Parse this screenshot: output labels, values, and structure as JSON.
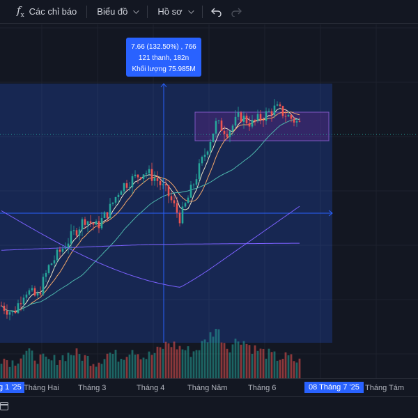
{
  "toolbar": {
    "indicators_label": "Các chỉ báo",
    "chart_type_label": "Biểu đồ",
    "profile_label": "Hồ sơ",
    "fx_icon": "function-icon",
    "undo_icon": "undo-icon",
    "redo_icon": "redo-icon"
  },
  "measure": {
    "line1": "7.66 (132.50%) , 766",
    "line2": "121 thanh, 182n",
    "line3": "Khối lượng 75.985M"
  },
  "time_axis": {
    "labels": [
      "g 1 '25",
      "Tháng Hai",
      "Tháng 3",
      "Tháng 4",
      "Tháng Năm",
      "Tháng 6",
      "08 Tháng 7 '25",
      "Tháng Tám"
    ],
    "highlight": "08 Tháng 7 '25"
  },
  "colors": {
    "background": "#131722",
    "up": "#26a69a",
    "down": "#ef5350",
    "measure_fill": "#2962ff",
    "ma_fast": "#f0e6c8",
    "ma_mid": "#f5a96b",
    "ma_slow": "#4db6ac",
    "ma_long": "#7b61ff"
  },
  "chart_data": {
    "type": "candlestick",
    "price_trend": [
      10,
      9,
      12,
      11,
      15,
      17,
      19,
      21,
      20,
      22,
      25,
      26,
      27,
      26,
      24,
      21,
      25,
      29,
      33,
      32,
      34,
      33,
      34,
      35,
      34,
      33
    ],
    "volume_trend": [
      3,
      2,
      4,
      3,
      2,
      3,
      4,
      3,
      2,
      4,
      3,
      5,
      3,
      4,
      6,
      5,
      4,
      6,
      9,
      5,
      7,
      5,
      4,
      3,
      3,
      2
    ]
  }
}
